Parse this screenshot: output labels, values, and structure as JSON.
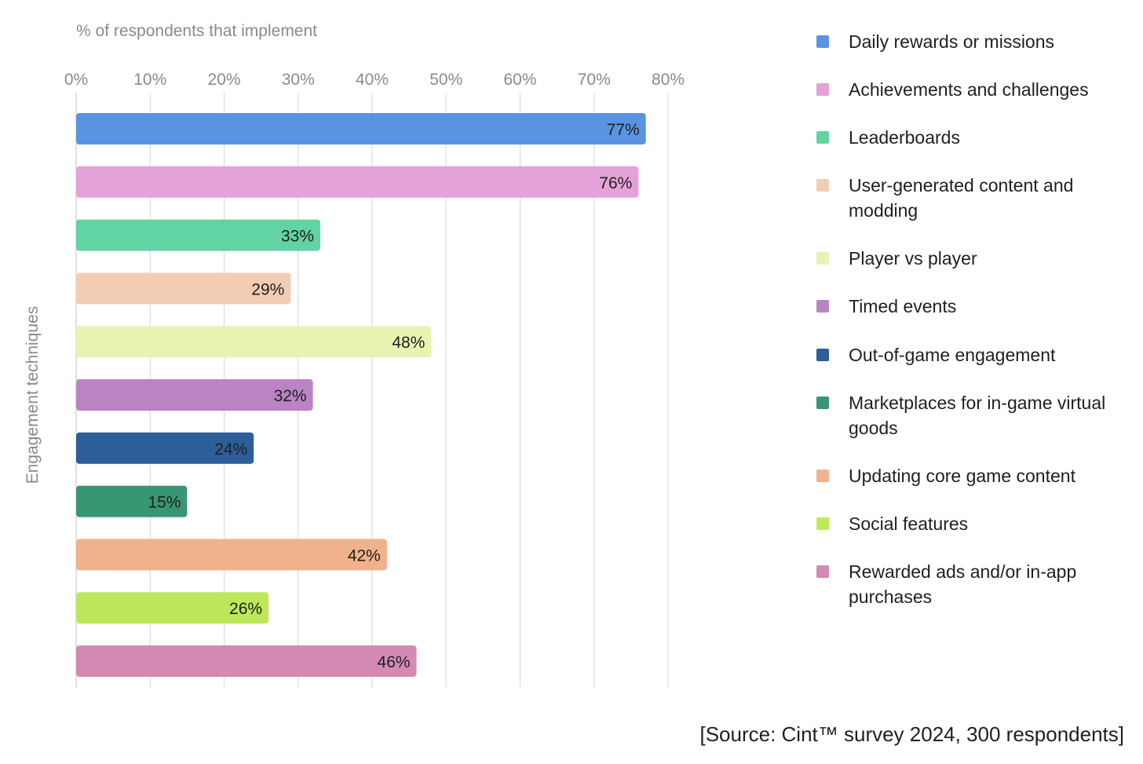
{
  "chart_data": {
    "type": "bar",
    "orientation": "horizontal",
    "title": "",
    "xlabel": "% of respondents that implement",
    "ylabel": "Engagement techniques",
    "xlim": [
      0,
      80
    ],
    "xticks": [
      0,
      10,
      20,
      30,
      40,
      50,
      60,
      70,
      80
    ],
    "tick_suffix": "%",
    "grid": true,
    "legend_position": "right",
    "categories": [
      "Daily rewards or missions",
      "Achievements and challenges",
      "Leaderboards",
      "User-generated content and modding",
      "Player vs player",
      "Timed events",
      "Out-of-game engagement",
      "Marketplaces for in-game virtual goods",
      "Updating core game content",
      "Social features",
      "Rewarded ads and/or in-app purchases"
    ],
    "values": [
      77,
      76,
      33,
      29,
      48,
      32,
      24,
      15,
      42,
      26,
      46
    ],
    "value_labels": [
      "77%",
      "76%",
      "33%",
      "29%",
      "48%",
      "32%",
      "24%",
      "15%",
      "42%",
      "26%",
      "46%"
    ],
    "colors": [
      "#5b93e3",
      "#e4a2d8",
      "#62d3a2",
      "#f2cdb4",
      "#e8f2b1",
      "#b983c4",
      "#2c5e99",
      "#389772",
      "#f0b28c",
      "#bde85b",
      "#d48ab4"
    ]
  },
  "legend": {
    "items": [
      "Daily rewards or missions",
      "Achievements and challenges",
      "Leaderboards",
      "User-generated content and modding",
      "Player vs player",
      "Timed events",
      "Out-of-game engagement",
      "Marketplaces for in-game virtual goods",
      "Updating core game content",
      "Social features",
      "Rewarded ads and/or in-app purchases"
    ]
  },
  "source_note": "[Source: Cint™ survey 2024, 300 respondents]",
  "colors": {
    "grid": "#d6d6d6",
    "axis_text": "#8a8a8a",
    "label_text": "#1f1f1f"
  }
}
